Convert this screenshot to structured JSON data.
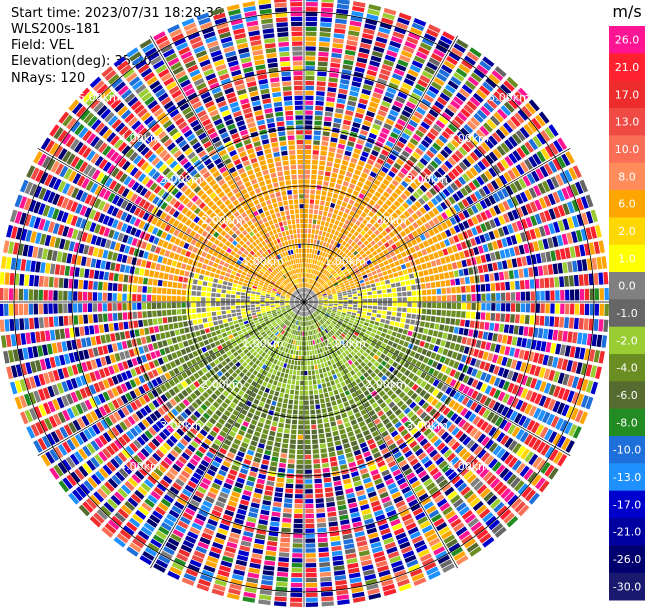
{
  "header": {
    "start_time": "Start time: 2023/07/31 18:28:36",
    "instrument": "WLS200s-181",
    "field": "Field: VEL",
    "elevation": "Elevation(deg): 35.30",
    "nrays": "NRays: 120"
  },
  "colorbar": {
    "unit": "m/s",
    "ticks": [
      "26.0",
      "21.0",
      "17.0",
      "13.0",
      "10.0",
      "8.0",
      "6.0",
      "2.0",
      "1.0",
      "0.0",
      "-1.0",
      "-2.0",
      "-4.0",
      "-6.0",
      "-8.0",
      "-10.0",
      "-13.0",
      "-17.0",
      "-21.0",
      "-26.0",
      "-30.0"
    ],
    "colors": [
      "#ff1493",
      "#ff2030",
      "#ee2c2c",
      "#f04a44",
      "#fa6e55",
      "#ff8c5a",
      "#ffa500",
      "#ffd700",
      "#ffff00",
      "#808080",
      "#666666",
      "#9acd32",
      "#6b8e23",
      "#556b2f",
      "#228b22",
      "#1e6fd9",
      "#1e90ff",
      "#0000cd",
      "#0000a0",
      "#00006e",
      "#191970"
    ]
  },
  "chart_data": {
    "type": "ppi",
    "field": "VEL",
    "units": "m/s",
    "nrays": 120,
    "elevation_deg": 35.3,
    "max_range_km": 5.3,
    "range_rings": [
      {
        "r_km": 1.0,
        "labels": [
          "1.00km",
          "1.00km",
          "1.00km",
          "1.00km"
        ]
      },
      {
        "r_km": 2.0,
        "labels": [
          "2.00km",
          "2.00km",
          "2.00km",
          "2.00km"
        ]
      },
      {
        "r_km": 3.0,
        "labels": [
          "3.00km",
          "3.00km",
          "3.00km",
          "3.00km"
        ]
      },
      {
        "r_km": 4.0,
        "labels": [
          "4.00km",
          "4.00km",
          "4.00km",
          "4.00km"
        ]
      },
      {
        "r_km": 5.0,
        "labels": [
          "5.00km",
          "5.00km"
        ]
      }
    ],
    "velocity_regions": [
      {
        "sector": "north",
        "range_km": [
          1.0,
          2.6
        ],
        "velocity_ms": [
          1.0,
          8.0
        ]
      },
      {
        "sector": "east-west band",
        "range_km": [
          0.3,
          2.0
        ],
        "velocity_ms": [
          -1.0,
          0.0
        ]
      },
      {
        "sector": "south",
        "range_km": [
          0.3,
          3.0
        ],
        "velocity_ms": [
          -8.0,
          -2.0
        ]
      },
      {
        "sector": "all",
        "range_km": [
          2.6,
          5.3
        ],
        "velocity_ms": [
          -30.0,
          26.0
        ],
        "note": "noise"
      }
    ]
  }
}
